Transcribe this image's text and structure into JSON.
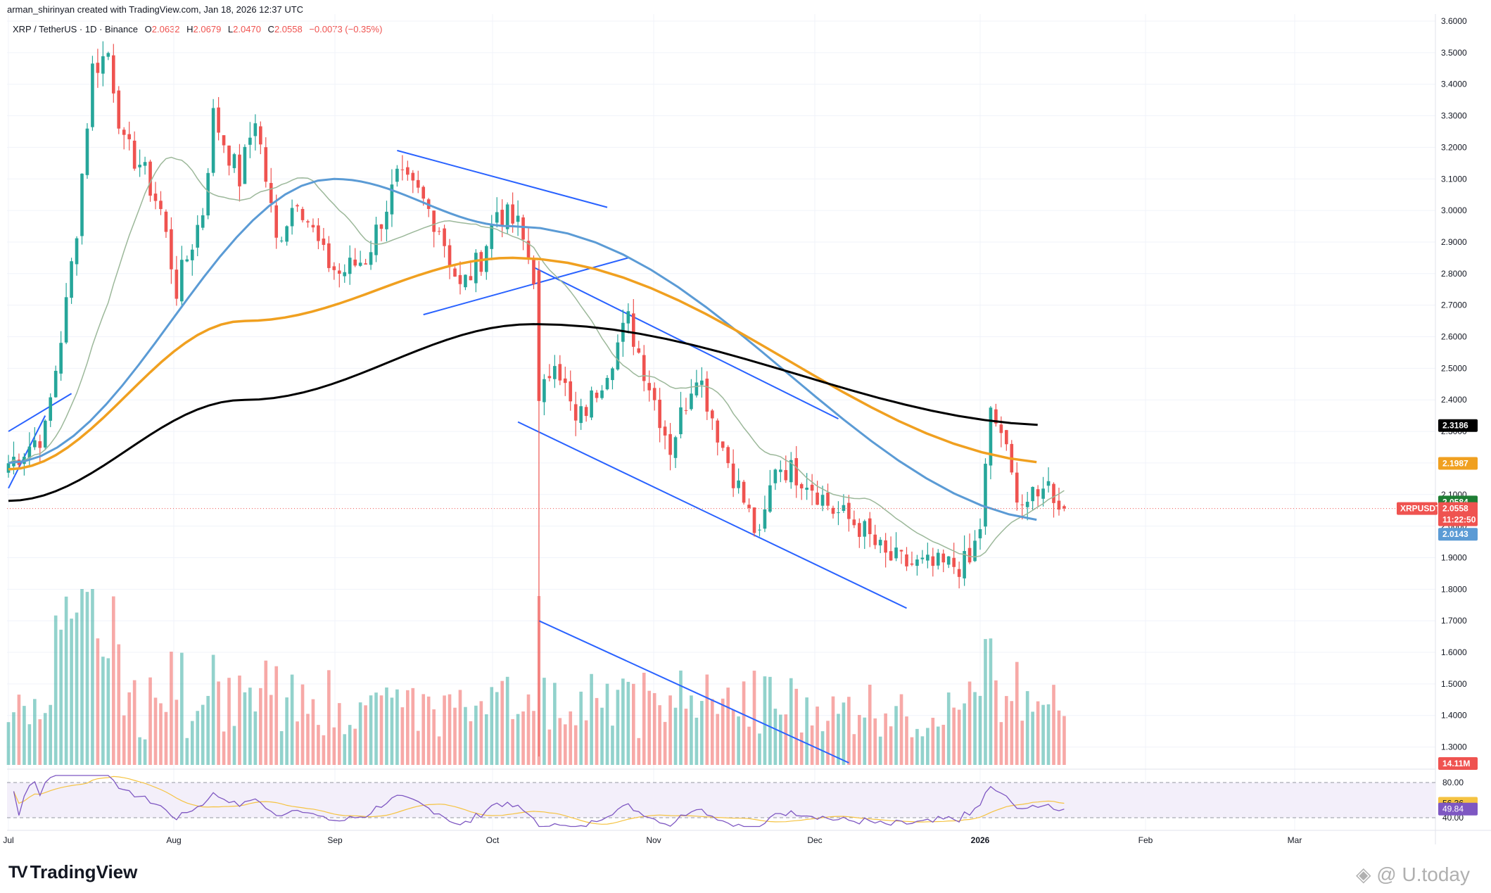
{
  "header": {
    "creator": "arman_shirinyan created with TradingView.com, Jan 18, 2026 12:37 UTC",
    "symbol": "XRP / TetherUS · 1D · Binance",
    "o_label": "O",
    "o": "2.0632",
    "h_label": "H",
    "h": "2.0679",
    "l_label": "L",
    "l": "2.0470",
    "c_label": "C",
    "c": "2.0558",
    "change": "−0.0073 (−0.35%)"
  },
  "colors": {
    "up": "#26a69a",
    "down": "#ef5350",
    "ma_short": "#9cb89a",
    "ma_blue": "#5b9bd5",
    "ma_orange": "#f0a020",
    "ma_black": "#000000",
    "trendline": "#2962ff",
    "rsi": "#7e57c2",
    "rsi_ma": "#f5c342"
  },
  "chart_data": [
    {
      "type": "candlestick",
      "title": "XRP / TetherUS · 1D · Binance",
      "y_axis": {
        "ticks": [
          "3.6000",
          "3.5000",
          "3.4000",
          "3.3000",
          "3.2000",
          "3.1000",
          "3.0000",
          "2.9000",
          "2.8000",
          "2.7000",
          "2.6000",
          "2.5000",
          "2.4000",
          "2.3000",
          "2.2000",
          "2.1000",
          "2.0000",
          "1.9000",
          "1.8000",
          "1.7000",
          "1.6000",
          "1.5000",
          "1.4000",
          "1.3000"
        ],
        "range": [
          1.25,
          3.6
        ]
      },
      "x_axis": {
        "ticks": [
          "Jul",
          "Aug",
          "Sep",
          "Oct",
          "Nov",
          "Dec",
          "2026",
          "Feb",
          "Mar"
        ]
      },
      "series": [
        {
          "name": "XRPUSDT",
          "anchors": [
            {
              "d": "Jul 1",
              "c": 2.2
            },
            {
              "d": "Jul 8",
              "c": 2.3
            },
            {
              "d": "Jul 12",
              "c": 2.7
            },
            {
              "d": "Jul 14",
              "c": 2.95
            },
            {
              "d": "Jul 17",
              "c": 3.45
            },
            {
              "d": "Jul 20",
              "c": 3.5
            },
            {
              "d": "Jul 23",
              "c": 3.2
            },
            {
              "d": "Jul 26",
              "c": 3.15
            },
            {
              "d": "Jul 30",
              "c": 3.0
            },
            {
              "d": "Aug 2",
              "c": 2.75
            },
            {
              "d": "Aug 7",
              "c": 3.0
            },
            {
              "d": "Aug 9",
              "c": 3.3
            },
            {
              "d": "Aug 14",
              "c": 3.1
            },
            {
              "d": "Aug 17",
              "c": 3.3
            },
            {
              "d": "Aug 21",
              "c": 2.9
            },
            {
              "d": "Aug 25",
              "c": 3.05
            },
            {
              "d": "Aug 30",
              "c": 2.85
            },
            {
              "d": "Sep 2",
              "c": 2.8
            },
            {
              "d": "Sep 7",
              "c": 2.85
            },
            {
              "d": "Sep 13",
              "c": 3.1
            },
            {
              "d": "Sep 17",
              "c": 3.05
            },
            {
              "d": "Sep 21",
              "c": 2.95
            },
            {
              "d": "Sep 25",
              "c": 2.75
            },
            {
              "d": "Sep 29",
              "c": 2.85
            },
            {
              "d": "Oct 2",
              "c": 3.0
            },
            {
              "d": "Oct 6",
              "c": 2.95
            },
            {
              "d": "Oct 9",
              "c": 2.8
            },
            {
              "d": "Oct 10",
              "c": 2.37
            },
            {
              "d": "Oct 13",
              "c": 2.55
            },
            {
              "d": "Oct 17",
              "c": 2.32
            },
            {
              "d": "Oct 20",
              "c": 2.4
            },
            {
              "d": "Oct 27",
              "c": 2.65
            },
            {
              "d": "Oct 31",
              "c": 2.45
            },
            {
              "d": "Nov 4",
              "c": 2.25
            },
            {
              "d": "Nov 9",
              "c": 2.5
            },
            {
              "d": "Nov 14",
              "c": 2.25
            },
            {
              "d": "Nov 21",
              "c": 1.95
            },
            {
              "d": "Nov 24",
              "c": 2.2
            },
            {
              "d": "Nov 30",
              "c": 2.15
            },
            {
              "d": "Dec 5",
              "c": 2.05
            },
            {
              "d": "Dec 10",
              "c": 2.0
            },
            {
              "d": "Dec 15",
              "c": 1.9
            },
            {
              "d": "Dec 19",
              "c": 1.88
            },
            {
              "d": "Dec 24",
              "c": 1.87
            },
            {
              "d": "Dec 31",
              "c": 1.88
            },
            {
              "d": "Jan 2",
              "c": 2.0
            },
            {
              "d": "Jan 4",
              "c": 2.35
            },
            {
              "d": "Jan 6",
              "c": 2.3
            },
            {
              "d": "Jan 8",
              "c": 2.15
            },
            {
              "d": "Jan 10",
              "c": 2.08
            },
            {
              "d": "Jan 13",
              "c": 2.08
            },
            {
              "d": "Jan 14",
              "c": 2.15
            },
            {
              "d": "Jan 18",
              "c": 2.0558
            }
          ]
        },
        {
          "name": "MA200",
          "approx": [
            [
              "Jul 1",
              2.08
            ],
            [
              "Aug 15",
              2.4
            ],
            [
              "Oct 9",
              2.64
            ],
            [
              "Jan 18",
              2.3186
            ]
          ]
        },
        {
          "name": "MA100",
          "approx": [
            [
              "Jul 1",
              2.18
            ],
            [
              "Aug 15",
              2.65
            ],
            [
              "Oct 5",
              2.85
            ],
            [
              "Jan 18",
              2.1987
            ]
          ]
        },
        {
          "name": "MA50",
          "approx": [
            [
              "Jul 1",
              2.2
            ],
            [
              "Sep 1",
              3.1
            ],
            [
              "Oct 5",
              2.95
            ],
            [
              "Jan 18",
              2.0143
            ]
          ]
        }
      ],
      "price_tags": [
        {
          "label": "2.3186",
          "value": 2.3186,
          "color": "#000000"
        },
        {
          "label": "2.1987",
          "value": 2.1987,
          "color": "#f0a020"
        },
        {
          "label": "2.0584",
          "value": 2.0584,
          "color": "#1e7e34"
        },
        {
          "label": "XRPUSDT",
          "value": 2.0558,
          "color": "#ef5350",
          "price": "2.0558",
          "countdown": "11:22:50"
        },
        {
          "label": "2.0143",
          "value": 2.0143,
          "color": "#5b9bd5"
        }
      ],
      "volume_tag": "14.11M"
    },
    {
      "type": "line",
      "title": "RSI",
      "y_axis": {
        "ticks": [
          "80.00",
          "40.00"
        ]
      },
      "series": [
        {
          "name": "RSI",
          "last": 49.84
        },
        {
          "name": "RSI MA",
          "last": 56.36
        }
      ]
    }
  ],
  "branding": {
    "logo": "TV",
    "name": "TradingView",
    "watermark": "U.today"
  }
}
